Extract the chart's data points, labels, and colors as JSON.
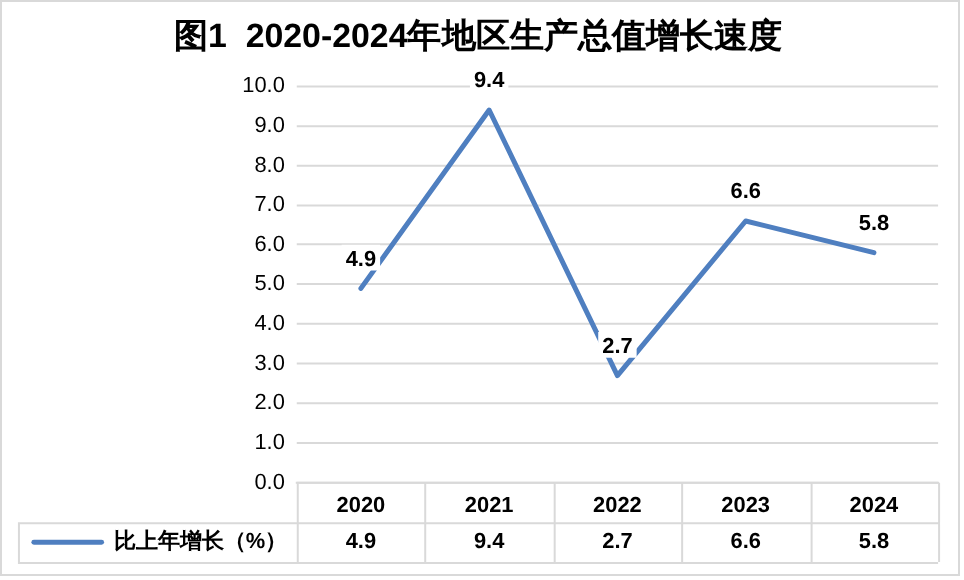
{
  "chart_data": {
    "type": "line",
    "title": "图1  2020-2024年地区生产总值增长速度",
    "categories": [
      "2020",
      "2021",
      "2022",
      "2023",
      "2024"
    ],
    "series": [
      {
        "name": "比上年增长（%）",
        "color": "#4f7fc0",
        "values": [
          4.9,
          9.4,
          2.7,
          6.6,
          5.8
        ]
      }
    ],
    "annotations": [
      "4.9",
      "9.4",
      "2.7",
      "6.6",
      "5.8"
    ],
    "ylim": [
      0,
      10
    ],
    "yticks": [
      {
        "value": 0,
        "label": "0.0"
      },
      {
        "value": 1,
        "label": "1.0"
      },
      {
        "value": 2,
        "label": "2.0"
      },
      {
        "value": 3,
        "label": "3.0"
      },
      {
        "value": 4,
        "label": "4.0"
      },
      {
        "value": 5,
        "label": "5.0"
      },
      {
        "value": 6,
        "label": "6.0"
      },
      {
        "value": 7,
        "label": "7.0"
      },
      {
        "value": 8,
        "label": "8.0"
      },
      {
        "value": 9,
        "label": "9.0"
      },
      {
        "value": 10,
        "label": "10.0"
      }
    ],
    "grid": "y",
    "data_labels": true,
    "legend": "bottom",
    "marker": "none",
    "line_style": "solid"
  }
}
